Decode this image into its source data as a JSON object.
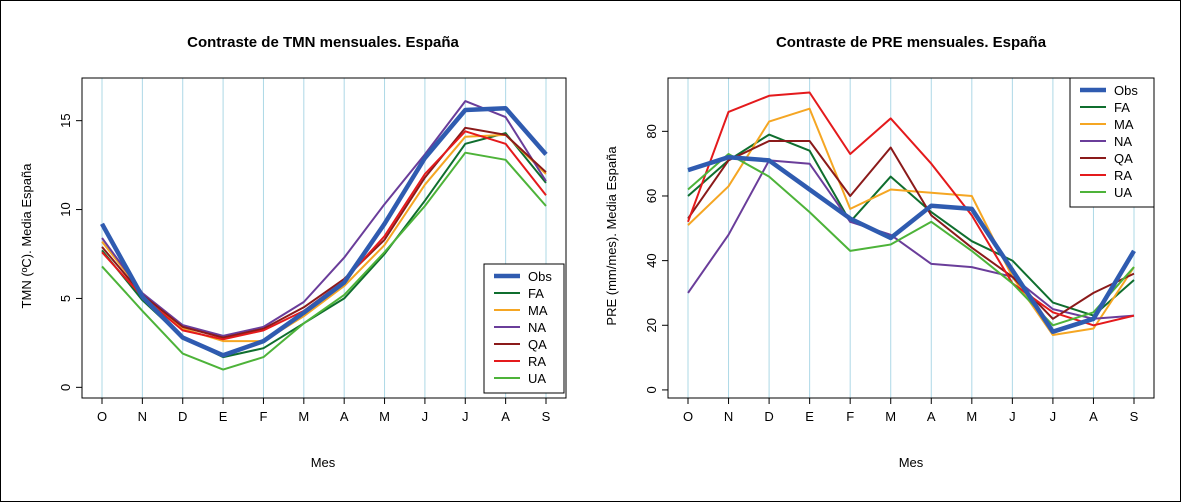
{
  "chart_data": [
    {
      "type": "line",
      "title": "Contraste de TMN mensuales. España",
      "xlabel": "Mes",
      "ylabel": "TMN (ºC). Media España",
      "categories": [
        "O",
        "N",
        "D",
        "E",
        "F",
        "M",
        "A",
        "M",
        "J",
        "J",
        "A",
        "S"
      ],
      "ylim": [
        -0.6,
        17.4
      ],
      "yticks": [
        0,
        5,
        10,
        15
      ],
      "grid": "vertical",
      "legend_position": "bottom-right",
      "series": [
        {
          "name": "Obs",
          "color": "#2f5bb0",
          "values": [
            9.2,
            5.1,
            2.8,
            1.8,
            2.6,
            4.2,
            5.9,
            9.2,
            12.9,
            15.6,
            15.7,
            13.1
          ]
        },
        {
          "name": "FA",
          "color": "#0f6e2e",
          "values": [
            7.7,
            4.9,
            2.8,
            1.7,
            2.2,
            3.6,
            5.0,
            7.5,
            10.5,
            13.7,
            14.3,
            11.5
          ]
        },
        {
          "name": "MA",
          "color": "#f5a623",
          "values": [
            8.2,
            5.3,
            3.3,
            2.6,
            2.6,
            4.0,
            5.7,
            8.0,
            11.4,
            14.1,
            14.2,
            12.0
          ]
        },
        {
          "name": "NA",
          "color": "#6a3d9a",
          "values": [
            8.4,
            5.3,
            3.5,
            2.9,
            3.4,
            4.8,
            7.3,
            10.3,
            13.1,
            16.1,
            15.2,
            11.6
          ]
        },
        {
          "name": "QA",
          "color": "#8b1a1a",
          "values": [
            7.9,
            5.2,
            3.4,
            2.8,
            3.3,
            4.5,
            6.1,
            8.3,
            11.8,
            14.6,
            14.2,
            12.1
          ]
        },
        {
          "name": "RA",
          "color": "#e41a1c",
          "values": [
            7.6,
            5.1,
            3.2,
            2.7,
            3.2,
            4.3,
            6.0,
            8.5,
            12.0,
            14.4,
            13.7,
            10.8
          ]
        },
        {
          "name": "UA",
          "color": "#4db339",
          "values": [
            6.8,
            4.3,
            1.9,
            1.0,
            1.7,
            3.6,
            5.2,
            7.6,
            10.2,
            13.2,
            12.8,
            10.2
          ]
        }
      ]
    },
    {
      "type": "line",
      "title": "Contraste de PRE mensuales. España",
      "xlabel": "Mes",
      "ylabel": "PRE (mm/mes). Media España",
      "categories": [
        "O",
        "N",
        "D",
        "E",
        "F",
        "M",
        "A",
        "M",
        "J",
        "J",
        "A",
        "S"
      ],
      "ylim": [
        -2.5,
        96.5
      ],
      "yticks": [
        0,
        20,
        40,
        60,
        80
      ],
      "grid": "vertical",
      "legend_position": "top-right",
      "series": [
        {
          "name": "Obs",
          "color": "#2f5bb0",
          "values": [
            68,
            72,
            71,
            62,
            53,
            47,
            57,
            56,
            37,
            18,
            22,
            43
          ]
        },
        {
          "name": "FA",
          "color": "#0f6e2e",
          "values": [
            60,
            71,
            79,
            74,
            52,
            66,
            55,
            46,
            40,
            27,
            23,
            34
          ]
        },
        {
          "name": "MA",
          "color": "#f5a623",
          "values": [
            51,
            63,
            83,
            87,
            56,
            62,
            61,
            60,
            35,
            17,
            19,
            38
          ]
        },
        {
          "name": "NA",
          "color": "#6a3d9a",
          "values": [
            30,
            48,
            71,
            70,
            52,
            48,
            39,
            38,
            35,
            25,
            22,
            23
          ]
        },
        {
          "name": "QA",
          "color": "#8b1a1a",
          "values": [
            53,
            71,
            77,
            77,
            60,
            75,
            54,
            44,
            35,
            22,
            30,
            36
          ]
        },
        {
          "name": "RA",
          "color": "#e41a1c",
          "values": [
            52,
            86,
            91,
            92,
            73,
            84,
            70,
            54,
            33,
            24,
            20,
            23
          ]
        },
        {
          "name": "UA",
          "color": "#4db339",
          "values": [
            62,
            73,
            66,
            55,
            43,
            45,
            52,
            43,
            33,
            20,
            24,
            38
          ]
        }
      ]
    }
  ]
}
